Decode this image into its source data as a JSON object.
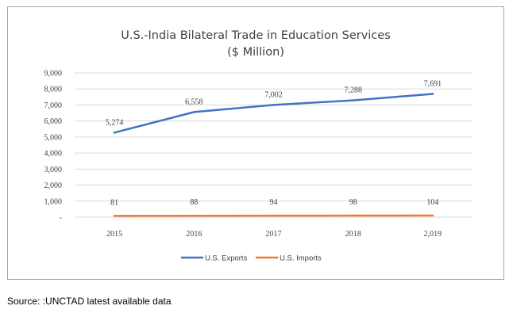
{
  "chart_data": {
    "type": "line",
    "title": "U.S.-India Bilateral Trade in Education Services",
    "subtitle": "($ Million)",
    "categories": [
      "2015",
      "2016",
      "2017",
      "2018",
      "2,019"
    ],
    "y_tick_labels": [
      "-",
      "1,000",
      "2,000",
      "3,000",
      "4,000",
      "5,000",
      "6,000",
      "7,000",
      "8,000",
      "9,000"
    ],
    "ylim": [
      0,
      9000
    ],
    "y_tick_step": 1000,
    "grid": "horizontal",
    "legend_position": "bottom",
    "series": [
      {
        "name": "U.S. Exports",
        "color": "#4472c4",
        "values": [
          5274,
          6558,
          7002,
          7288,
          7691
        ],
        "data_labels": [
          "5,274",
          "6,558",
          "7,002",
          "7,288",
          "7,691"
        ]
      },
      {
        "name": "U.S. Imports",
        "color": "#ed7d31",
        "values": [
          81,
          88,
          94,
          98,
          104
        ],
        "data_labels": [
          "81",
          "88",
          "94",
          "98",
          "104"
        ]
      }
    ]
  },
  "source_note": "Source: :UNCTAD latest available data"
}
